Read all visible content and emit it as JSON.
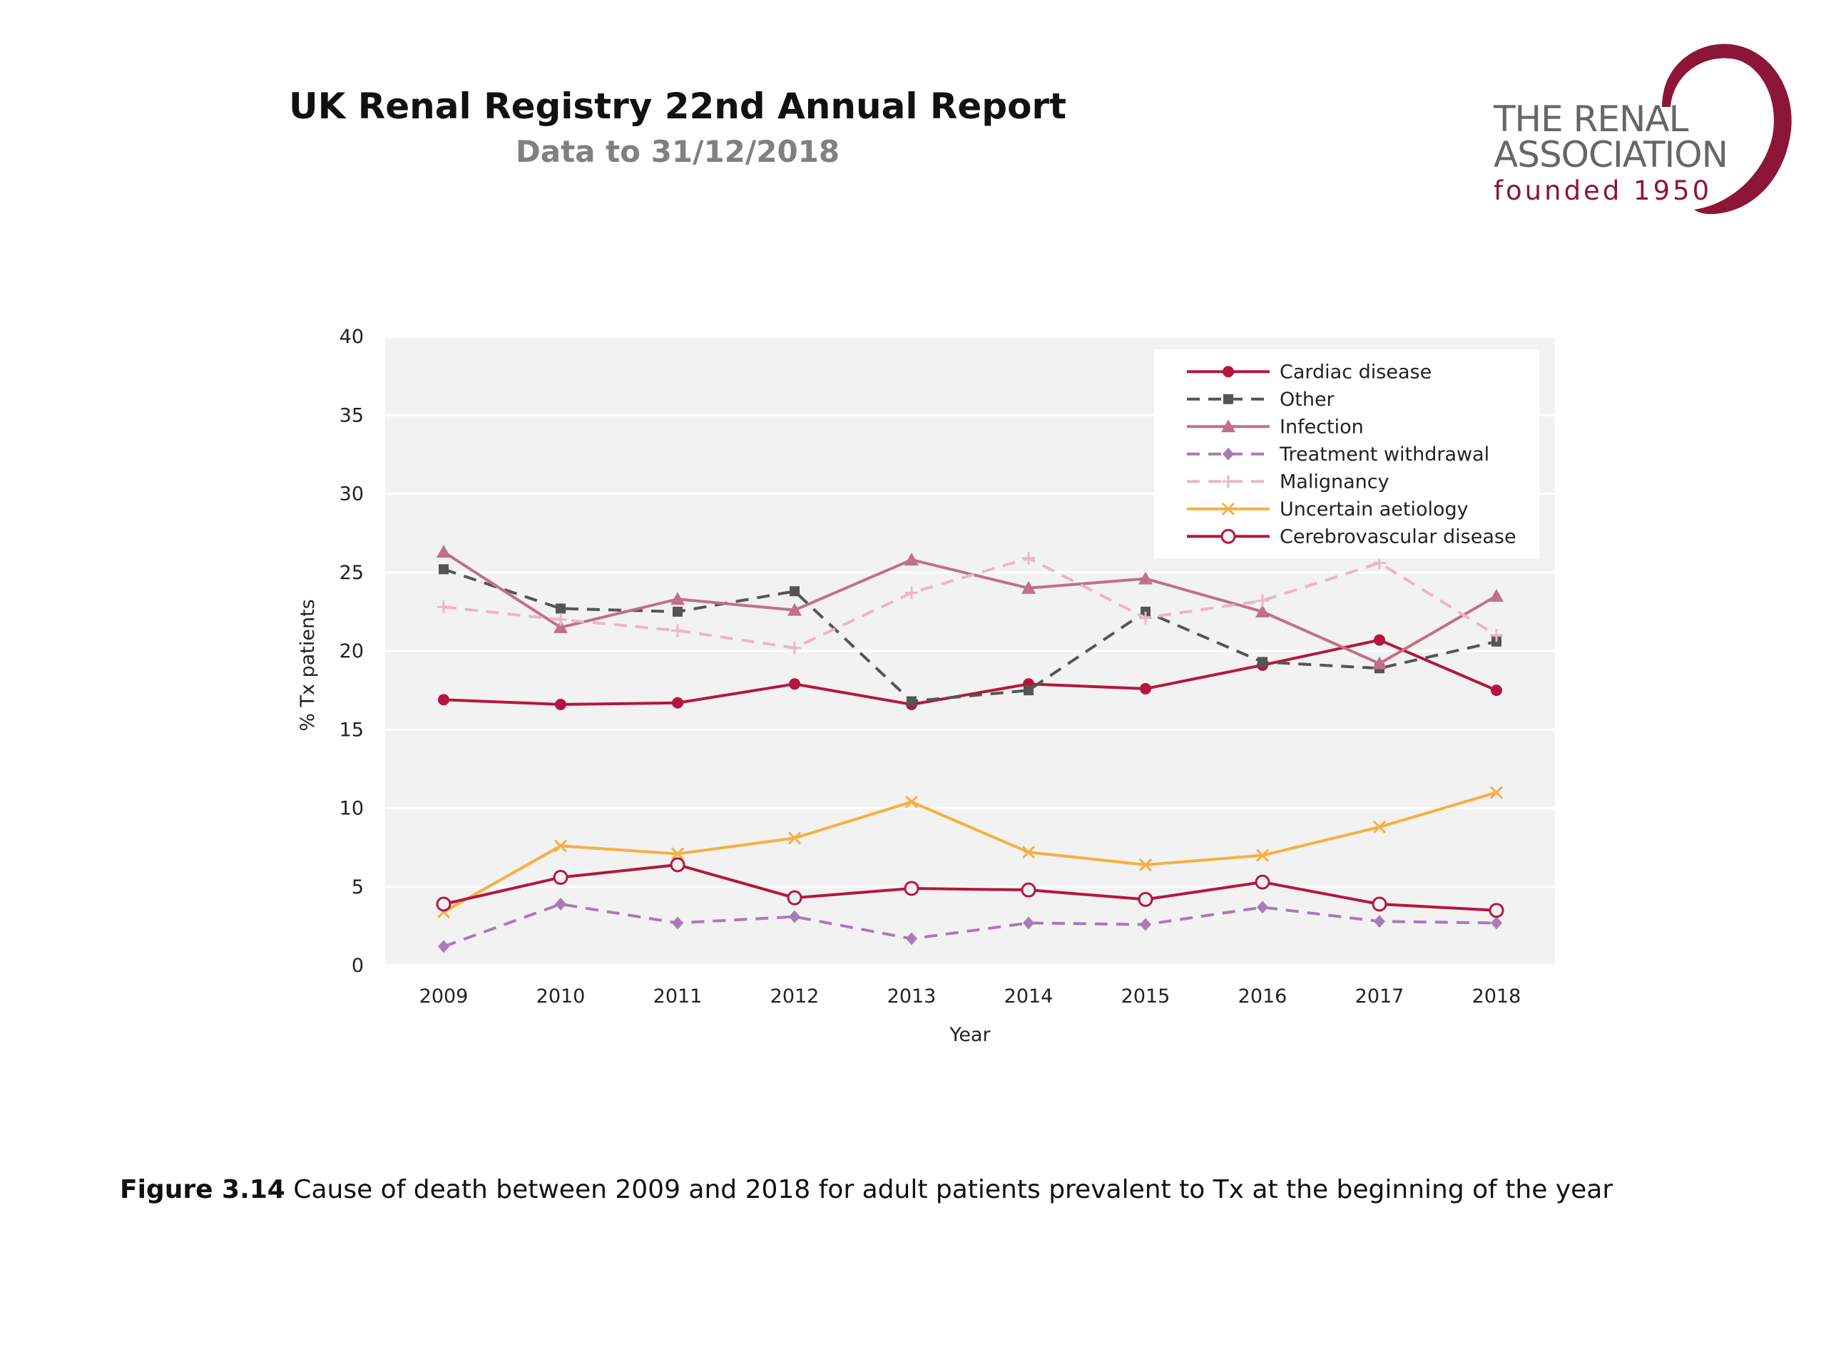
{
  "header": {
    "title": "UK Renal Registry 22nd Annual Report",
    "subtitle": "Data to 31/12/2018"
  },
  "logo": {
    "line1": "THE RENAL",
    "line2": "ASSOCIATION",
    "line3": "founded 1950",
    "color": "#8c1538"
  },
  "caption": {
    "label": "Figure 3.14",
    "text": " Cause of death between 2009 and 2018 for adult patients prevalent to Tx at the beginning of the year"
  },
  "chart_data": {
    "type": "line",
    "xlabel": "Year",
    "ylabel": "% Tx patients",
    "ylim": [
      0,
      40
    ],
    "yticks": [
      0,
      5,
      10,
      15,
      20,
      25,
      30,
      35,
      40
    ],
    "grid": true,
    "legend_position": "top-right",
    "x": [
      "2009",
      "2010",
      "2011",
      "2012",
      "2013",
      "2014",
      "2015",
      "2016",
      "2017",
      "2018"
    ],
    "series": [
      {
        "name": "Cardiac disease",
        "color": "#b5163f",
        "dash": false,
        "marker": "circle-filled",
        "values": [
          16.9,
          16.6,
          16.7,
          17.9,
          16.6,
          17.9,
          17.6,
          19.1,
          20.7,
          17.5
        ]
      },
      {
        "name": "Other",
        "color": "#555555",
        "dash": true,
        "marker": "square",
        "values": [
          25.2,
          22.7,
          22.5,
          23.8,
          16.8,
          17.5,
          22.5,
          19.3,
          18.9,
          20.6
        ]
      },
      {
        "name": "Infection",
        "color": "#c07088",
        "dash": false,
        "marker": "triangle",
        "values": [
          26.3,
          21.5,
          23.3,
          22.6,
          25.8,
          24.0,
          24.6,
          22.5,
          19.2,
          23.5
        ]
      },
      {
        "name": "Treatment withdrawal",
        "color": "#a97bb5",
        "dash": true,
        "marker": "diamond",
        "values": [
          1.2,
          3.9,
          2.7,
          3.1,
          1.7,
          2.7,
          2.6,
          3.7,
          2.8,
          2.7
        ]
      },
      {
        "name": "Malignancy",
        "color": "#e8b8c4",
        "dash": true,
        "marker": "plus",
        "values": [
          22.8,
          22.0,
          21.3,
          20.2,
          23.7,
          25.9,
          22.1,
          23.2,
          25.6,
          21.0
        ]
      },
      {
        "name": "Uncertain aetiology",
        "color": "#f5b041",
        "dash": false,
        "marker": "x",
        "values": [
          3.4,
          7.6,
          7.1,
          8.1,
          10.4,
          7.2,
          6.4,
          7.0,
          8.8,
          11.0
        ]
      },
      {
        "name": "Cerebrovascular disease",
        "color": "#b5163f",
        "dash": false,
        "marker": "circle-open",
        "values": [
          3.9,
          5.6,
          6.4,
          4.3,
          4.9,
          4.8,
          4.2,
          5.3,
          3.9,
          3.5
        ]
      }
    ]
  }
}
